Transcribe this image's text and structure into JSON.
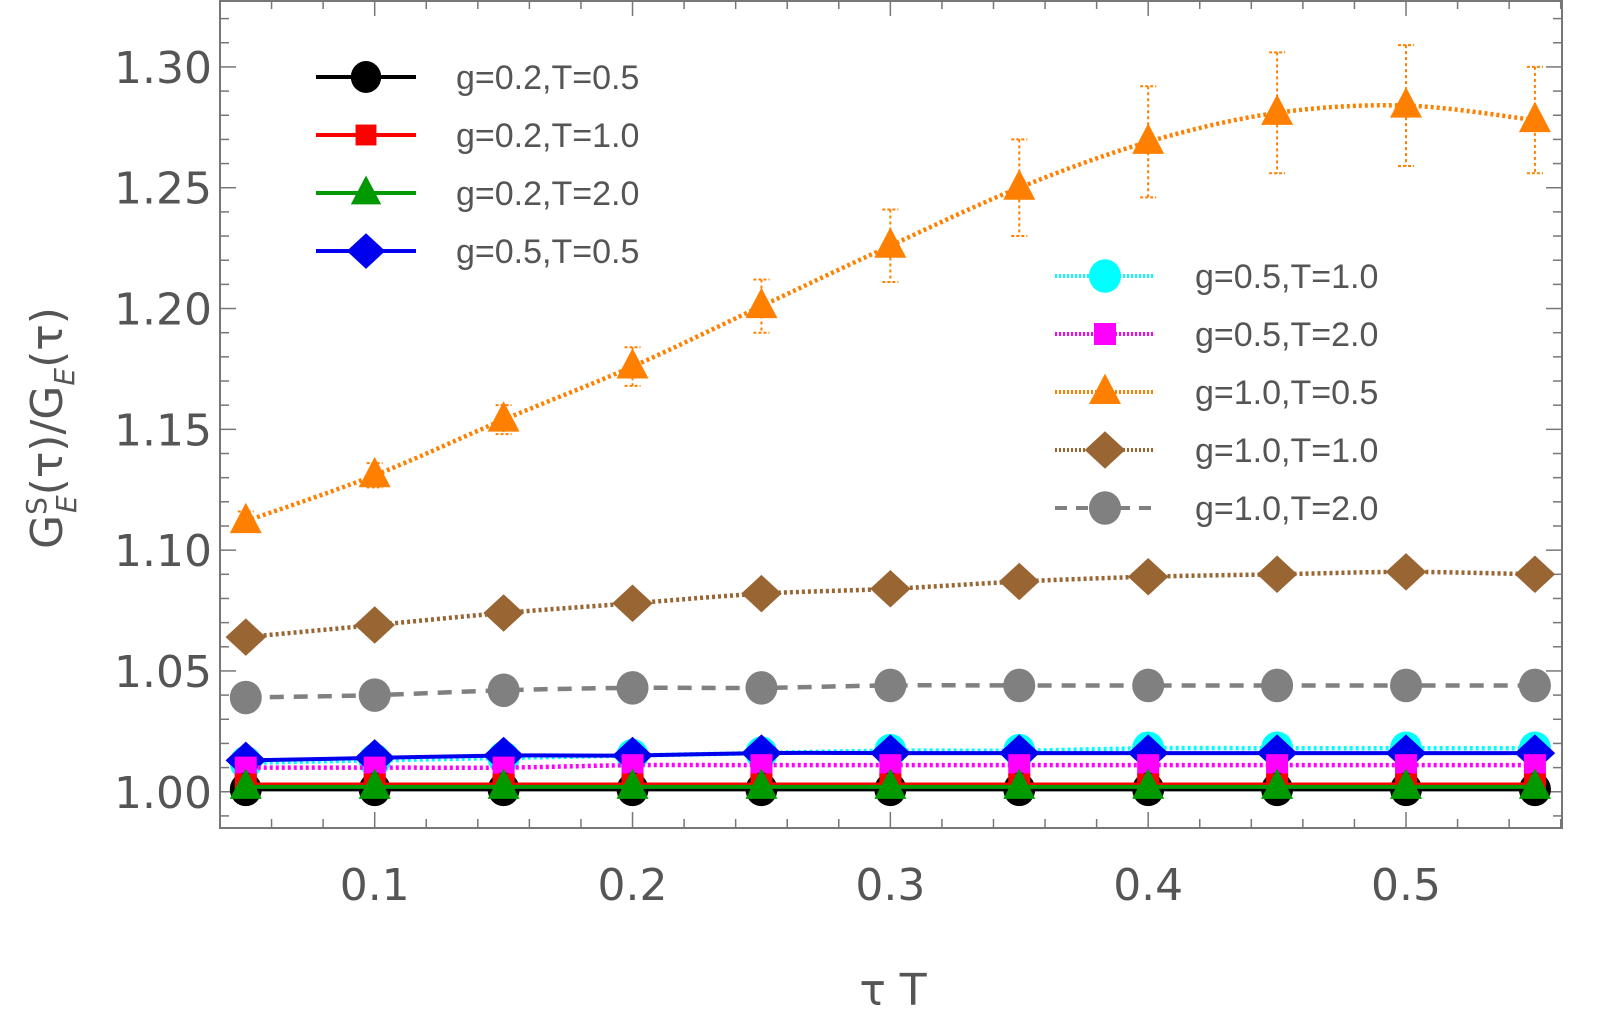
{
  "chart_data": {
    "type": "line",
    "title": "",
    "xlabel": "τ T",
    "ylabel": "G_E^S(τ)/G_E(τ)",
    "ylabel_parts": {
      "main": "G",
      "sup": "S",
      "sub": "E",
      "rest1": "(τ)/G",
      "sub2": "E",
      "rest2": "(τ)"
    },
    "xlim": [
      0.04,
      0.5605
    ],
    "ylim": [
      0.985,
      1.3277
    ],
    "grid": false,
    "x_ticks": [
      0.1,
      0.2,
      0.3,
      0.4,
      0.5
    ],
    "x_tick_labels": [
      "0.1",
      "0.2",
      "0.3",
      "0.4",
      "0.5"
    ],
    "x_minor_step": 0.02,
    "y_ticks": [
      1.0,
      1.05,
      1.1,
      1.15,
      1.2,
      1.25,
      1.3
    ],
    "y_tick_labels": [
      "1.00",
      "1.05",
      "1.10",
      "1.15",
      "1.20",
      "1.25",
      "1.30"
    ],
    "y_minor_step": 0.01,
    "x": [
      0.05,
      0.1,
      0.15,
      0.2,
      0.25,
      0.3,
      0.35,
      0.4,
      0.45,
      0.5,
      0.55
    ],
    "legends": [
      {
        "placement": "top-left",
        "entries": [
          0,
          1,
          2,
          3
        ]
      },
      {
        "placement": "center-right",
        "entries": [
          4,
          5,
          6,
          7,
          8
        ]
      }
    ],
    "series": [
      {
        "name": "g=0.2,T=0.5",
        "color": "#000000",
        "marker": "circle",
        "line": "solid",
        "values": [
          1.001,
          1.001,
          1.001,
          1.001,
          1.001,
          1.001,
          1.001,
          1.001,
          1.001,
          1.001,
          1.001
        ]
      },
      {
        "name": "g=0.2,T=1.0",
        "color": "#ff0000",
        "marker": "square",
        "line": "solid",
        "values": [
          1.003,
          1.003,
          1.003,
          1.003,
          1.003,
          1.003,
          1.003,
          1.003,
          1.003,
          1.003,
          1.003
        ]
      },
      {
        "name": "g=0.2,T=2.0",
        "color": "#009900",
        "marker": "triangle",
        "line": "solid",
        "values": [
          1.002,
          1.002,
          1.002,
          1.002,
          1.002,
          1.002,
          1.002,
          1.002,
          1.002,
          1.002,
          1.002
        ]
      },
      {
        "name": "g=0.5,T=0.5",
        "color": "#0000ee",
        "marker": "diamond",
        "line": "solid",
        "values": [
          1.013,
          1.014,
          1.015,
          1.015,
          1.016,
          1.016,
          1.016,
          1.016,
          1.016,
          1.016,
          1.016
        ]
      },
      {
        "name": "g=0.5,T=1.0",
        "color": "#00ffff",
        "marker": "circle",
        "line": "dotted",
        "values": [
          1.012,
          1.013,
          1.014,
          1.015,
          1.016,
          1.017,
          1.017,
          1.018,
          1.018,
          1.018,
          1.018
        ]
      },
      {
        "name": "g=0.5,T=2.0",
        "color": "#ff00ff",
        "marker": "square",
        "line": "dotted",
        "values": [
          1.01,
          1.01,
          1.01,
          1.011,
          1.011,
          1.011,
          1.011,
          1.011,
          1.011,
          1.011,
          1.011
        ]
      },
      {
        "name": "g=1.0,T=0.5",
        "color": "#ff8000",
        "marker": "triangle",
        "line": "dotted",
        "values": [
          1.112,
          1.131,
          1.154,
          1.176,
          1.201,
          1.226,
          1.25,
          1.269,
          1.281,
          1.284,
          1.278
        ],
        "errors": [
          0.004,
          0.005,
          0.006,
          0.008,
          0.011,
          0.015,
          0.02,
          0.023,
          0.025,
          0.025,
          0.022
        ]
      },
      {
        "name": "g=1.0,T=1.0",
        "color": "#996633",
        "marker": "diamond",
        "line": "dotted",
        "values": [
          1.064,
          1.069,
          1.074,
          1.078,
          1.082,
          1.084,
          1.087,
          1.089,
          1.09,
          1.091,
          1.09
        ]
      },
      {
        "name": "g=1.0,T=2.0",
        "color": "#808080",
        "marker": "circle",
        "line": "dashed",
        "values": [
          1.039,
          1.04,
          1.042,
          1.043,
          1.043,
          1.044,
          1.044,
          1.044,
          1.044,
          1.044,
          1.044
        ]
      }
    ]
  }
}
